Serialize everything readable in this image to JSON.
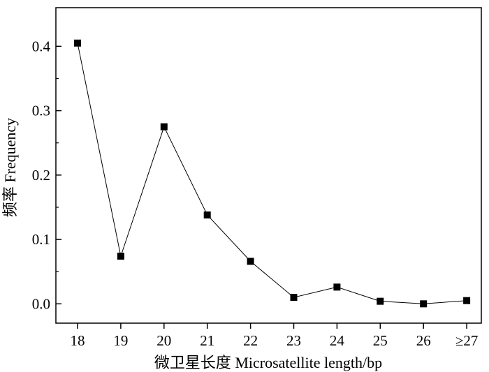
{
  "chart_data": {
    "type": "line",
    "xlabel": "微卫星长度 Microsatellite length/bp",
    "ylabel": "频率 Frequency",
    "categories": [
      "18",
      "19",
      "20",
      "21",
      "22",
      "23",
      "24",
      "25",
      "26",
      "≥27"
    ],
    "series": [
      {
        "values": [
          0.405,
          0.074,
          0.275,
          0.138,
          0.066,
          0.01,
          0.026,
          0.004,
          0.0,
          0.005
        ]
      }
    ],
    "ylim": [
      -0.03,
      0.46
    ],
    "yticks": [
      0.0,
      0.1,
      0.2,
      0.3,
      0.4
    ],
    "ytick_labels": [
      "0.0",
      "0.1",
      "0.2",
      "0.3",
      "0.4"
    ],
    "grid": false,
    "legend": "none",
    "marker": "square",
    "colors": {
      "line": "#000000",
      "marker": "#000000",
      "axis": "#000000"
    }
  }
}
